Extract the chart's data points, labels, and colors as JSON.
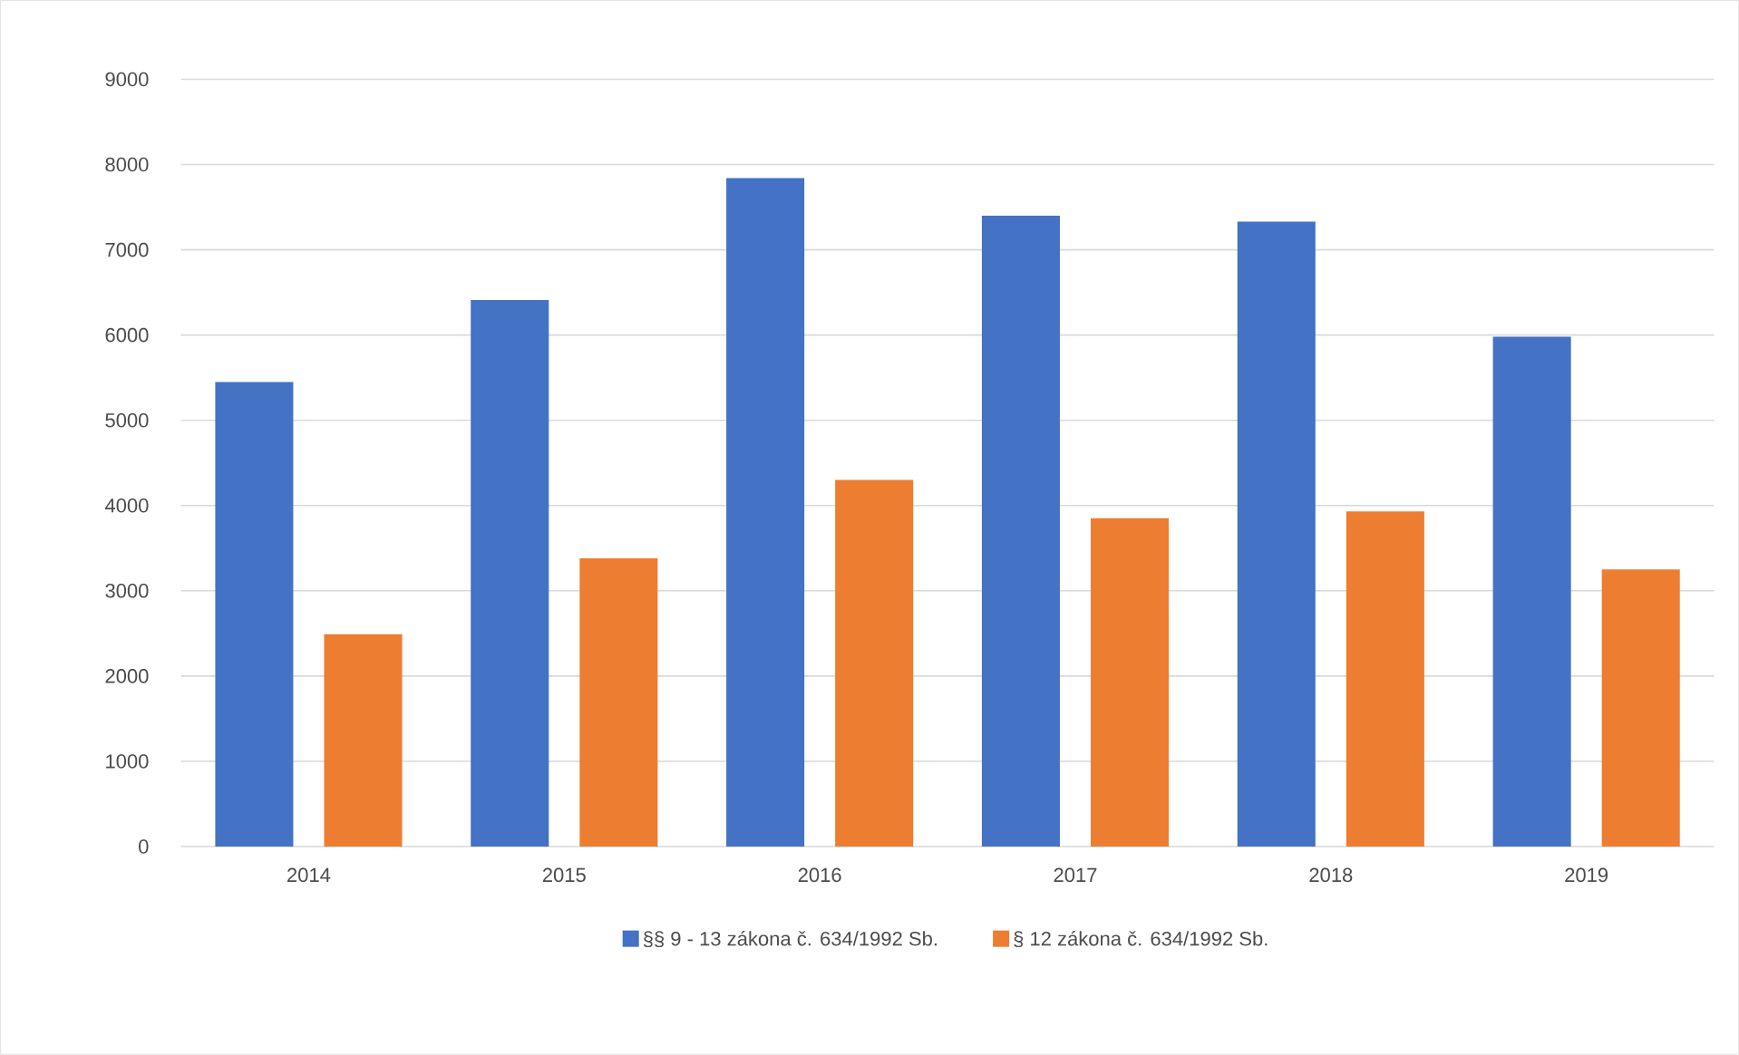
{
  "chart_data": {
    "type": "bar",
    "categories": [
      "2014",
      "2015",
      "2016",
      "2017",
      "2018",
      "2019"
    ],
    "series": [
      {
        "name": "§§ 9 - 13 zákona č. 634/1992 Sb.",
        "color": "#4472c4",
        "values": [
          5450,
          6410,
          7840,
          7400,
          7330,
          5980
        ]
      },
      {
        "name": "§ 12 zákona č. 634/1992 Sb.",
        "color": "#ed7d31",
        "values": [
          2490,
          3380,
          4300,
          3850,
          3930,
          3250
        ]
      }
    ],
    "ylim": [
      0,
      9000
    ],
    "yticks": [
      0,
      1000,
      2000,
      3000,
      4000,
      5000,
      6000,
      7000,
      8000,
      9000
    ],
    "grid": "y",
    "legend": "bottom"
  }
}
